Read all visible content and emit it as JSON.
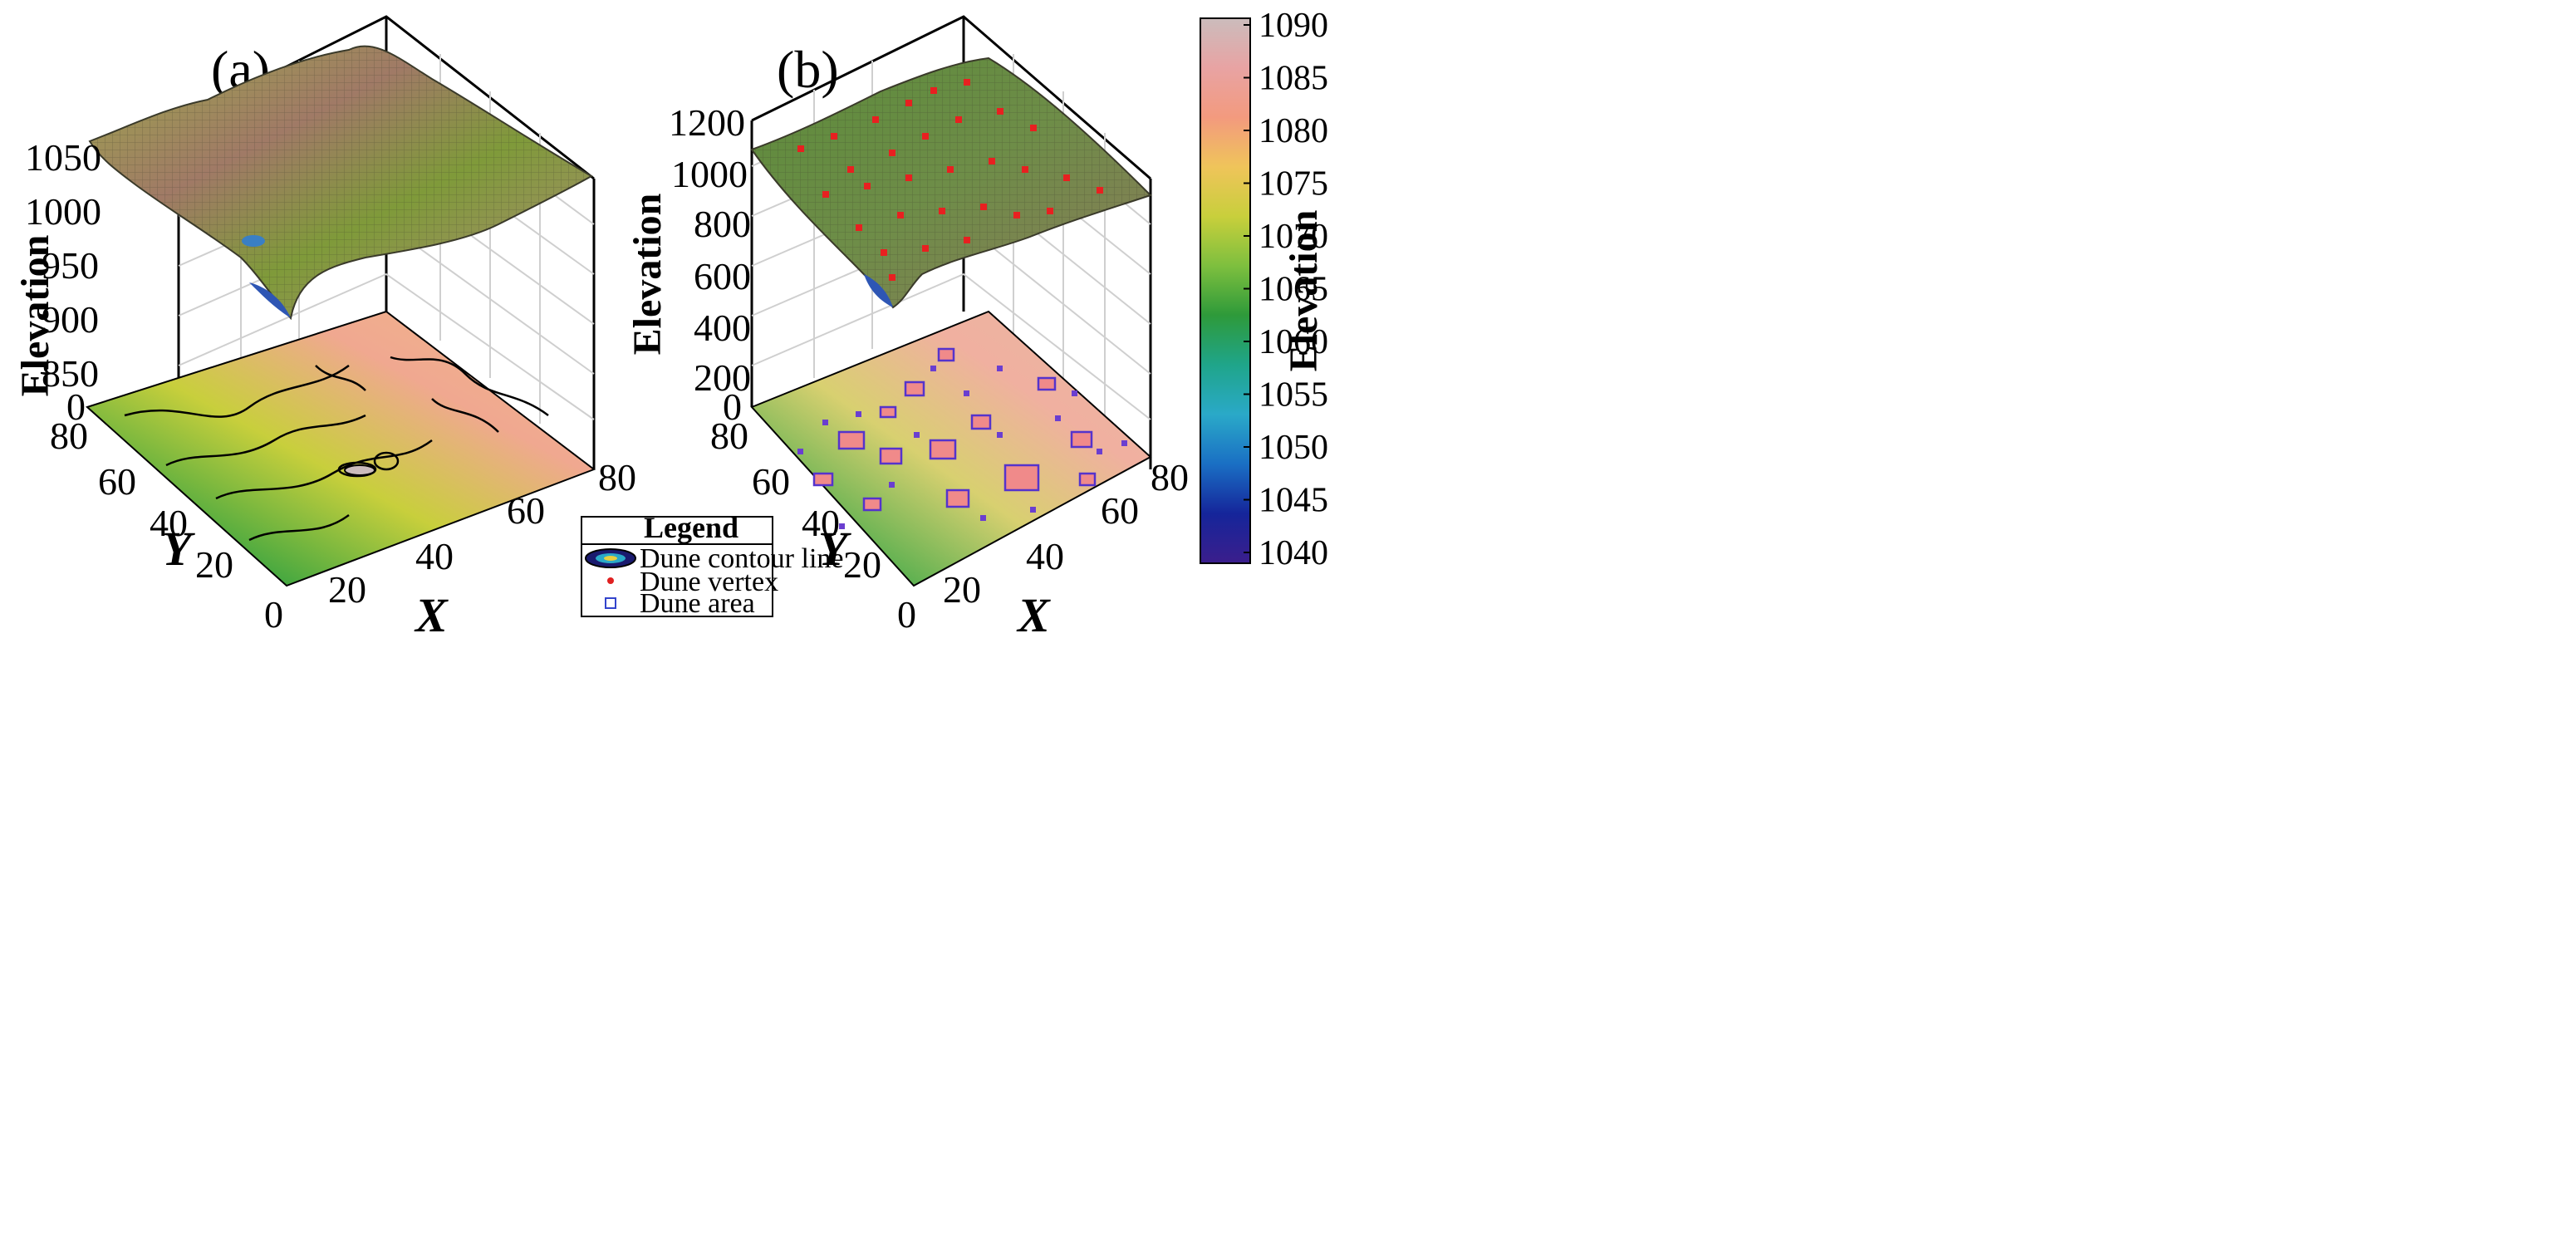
{
  "chart_data": [
    {
      "type": "surface",
      "panel_label": "(a)",
      "zlabel": "Elevation",
      "xlabel": "X",
      "ylabel": "Y",
      "x_ticks": [
        "20",
        "40",
        "60",
        "80"
      ],
      "y_ticks": [
        "0",
        "20",
        "40",
        "60",
        "80"
      ],
      "z_ticks": [
        "0",
        "850",
        "900",
        "950",
        "1000",
        "1050"
      ],
      "xlim": [
        0,
        80
      ],
      "ylim": [
        0,
        80
      ],
      "zlim": [
        0,
        1090
      ],
      "surface_elevation_range": [
        1040,
        1090
      ],
      "grid": true
    },
    {
      "type": "surface",
      "panel_label": "(b)",
      "zlabel": "Elevation",
      "xlabel": "X",
      "ylabel": "Y",
      "x_ticks": [
        "20",
        "40",
        "60",
        "80"
      ],
      "y_ticks": [
        "0",
        "20",
        "40",
        "60",
        "80"
      ],
      "z_ticks": [
        "0",
        "200",
        "400",
        "600",
        "800",
        "1000",
        "1200"
      ],
      "xlim": [
        0,
        80
      ],
      "ylim": [
        0,
        80
      ],
      "zlim": [
        0,
        1200
      ],
      "surface_elevation_range": [
        1040,
        1090
      ],
      "grid": true
    }
  ],
  "colorbar": {
    "label": "Elevation",
    "ticks": [
      "1090",
      "1085",
      "1080",
      "1075",
      "1070",
      "1065",
      "1060",
      "1055",
      "1050",
      "1045",
      "1040"
    ],
    "range": [
      1040,
      1090
    ],
    "colors": [
      "#3b1e8c",
      "#15259a",
      "#1a6fc4",
      "#2aa9c8",
      "#1fa58a",
      "#2e9a3a",
      "#7dbf3e",
      "#c8cf3c",
      "#efc45a",
      "#f39a7e",
      "#e8a3a3",
      "#cbbcbc"
    ]
  },
  "legend": {
    "title": "Legend",
    "items": [
      {
        "label": "Dune contour line",
        "icon": "contour-ellipse-icon"
      },
      {
        "label": "Dune vertex",
        "icon": "red-dot-icon",
        "color": "#e02020"
      },
      {
        "label": "Dune area",
        "icon": "blue-square-icon",
        "color": "#3344cc"
      }
    ]
  }
}
